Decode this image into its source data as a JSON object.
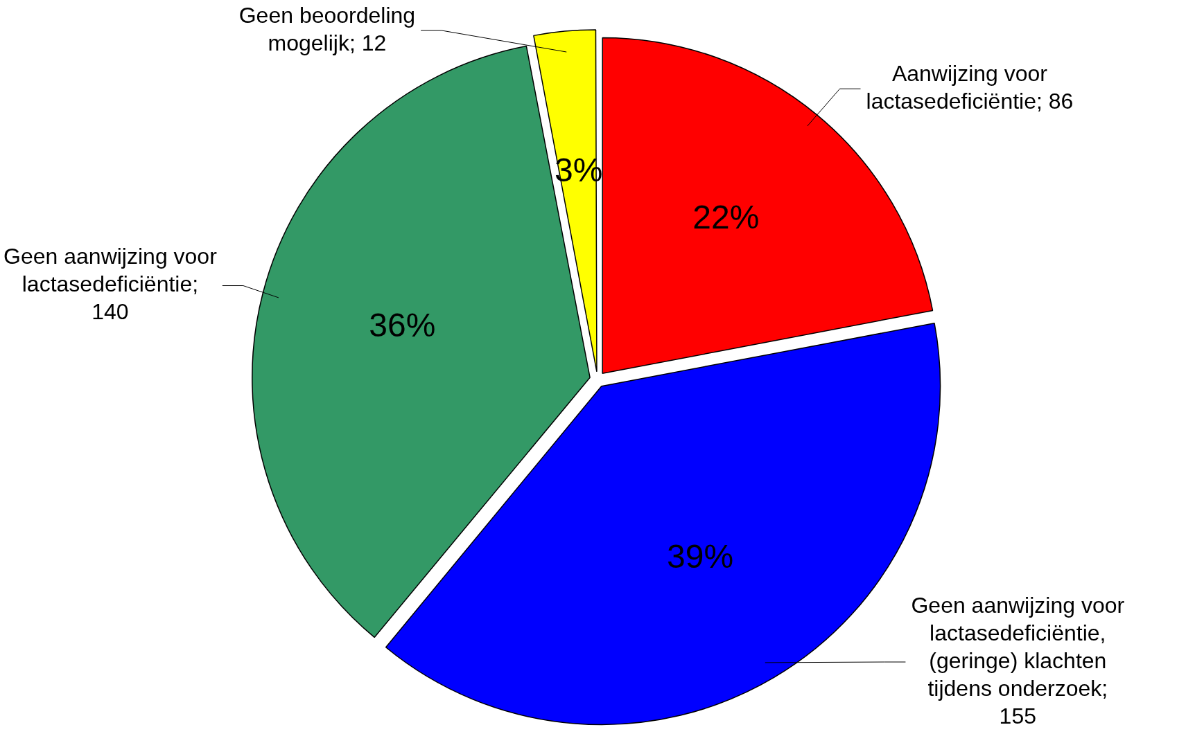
{
  "chart_data": {
    "type": "pie",
    "categories": [
      "Aanwijzing voor lactasedeficiëntie; 86",
      "Geen aanwijzing voor lactasedeficiëntie, (geringe) klachten tijdens onderzoek; 155",
      "Geen aanwijzing voor lactasedeficiëntie; 140",
      "Geen beoordeling mogelijk; 12"
    ],
    "values": [
      22,
      39,
      36,
      3
    ],
    "colors": [
      "#ff0000",
      "#0000ff",
      "#339966",
      "#ffff00"
    ],
    "value_labels": [
      "22%",
      "39%",
      "36%",
      "3%"
    ],
    "legend": false
  }
}
